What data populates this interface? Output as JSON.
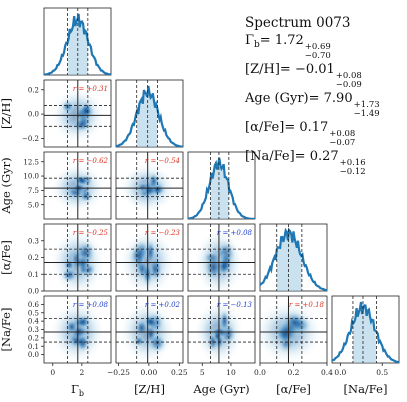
{
  "summary": {
    "title": "Spectrum 0073",
    "params": [
      {
        "label_main": "Γ",
        "label_sub": "b",
        "label_rest": "",
        "eq": "= ",
        "value": "1.72",
        "plus": "+0.69",
        "minus": "−0.70"
      },
      {
        "label_main": "[Z/H]",
        "label_sub": "",
        "label_rest": "",
        "eq": "= ",
        "value": "−0.01",
        "plus": "+0.08",
        "minus": "−0.09"
      },
      {
        "label_main": "Age (Gyr)",
        "label_sub": "",
        "label_rest": "",
        "eq": "= ",
        "value": "7.90",
        "plus": "+1.73",
        "minus": "−1.49"
      },
      {
        "label_main": "[α/Fe]",
        "label_sub": "",
        "label_rest": "",
        "eq": "= ",
        "value": "0.17",
        "plus": "+0.08",
        "minus": "−0.07"
      },
      {
        "label_main": "[Na/Fe]",
        "label_sub": "",
        "label_rest": "",
        "eq": "= ",
        "value": "0.27",
        "plus": "+0.16",
        "minus": "−0.12"
      }
    ]
  },
  "chart_data": {
    "type": "corner",
    "colors": {
      "density": "#1f77b4",
      "posterior_line": "#1f77b4",
      "r_positive": "#e0301e",
      "r_negative": "#2040d0"
    },
    "params": [
      {
        "key": "gamma_b",
        "axis_label": "Γ",
        "axis_sub": "b",
        "range": [
          -0.6,
          4.0
        ],
        "ticks": [
          0,
          2
        ],
        "median": 1.72,
        "lo": 1.02,
        "hi": 2.41
      },
      {
        "key": "zh",
        "axis_label": "[Z/H]",
        "axis_sub": "",
        "range": [
          -0.27,
          0.28
        ],
        "ticks": [
          -0.25,
          0.0,
          0.25
        ],
        "tick_labels": [
          "−0.25",
          "0.00",
          "0.25"
        ],
        "median": -0.01,
        "lo": -0.1,
        "hi": 0.07
      },
      {
        "key": "age",
        "axis_label": "Age (Gyr)",
        "axis_sub": "",
        "range": [
          2.5,
          14.2
        ],
        "ticks": [
          5,
          10
        ],
        "left_ticks": [
          5.0,
          7.5,
          10.0,
          12.5
        ],
        "left_tick_labels": [
          "5.0",
          "7.5",
          "10.0",
          "12.5"
        ],
        "median": 7.9,
        "lo": 6.41,
        "hi": 9.63
      },
      {
        "key": "afe",
        "axis_label": "[α/Fe]",
        "axis_sub": "",
        "range": [
          0.0,
          0.4
        ],
        "ticks": [
          0.0,
          0.2,
          0.4
        ],
        "left_ticks": [
          0.0,
          0.1,
          0.2,
          0.3
        ],
        "left_tick_labels": [
          "0.0",
          "0.1",
          "0.2",
          "0.3"
        ],
        "median": 0.17,
        "lo": 0.1,
        "hi": 0.25
      },
      {
        "key": "nafe",
        "axis_label": "[Na/Fe]",
        "axis_sub": "",
        "range": [
          -0.1,
          0.7
        ],
        "ticks": [
          0.0,
          0.5
        ],
        "left_ticks": [
          0.0,
          0.1,
          0.2,
          0.3,
          0.4,
          0.5,
          0.6
        ],
        "left_tick_labels": [
          "0.0",
          "0.1",
          "0.2",
          "0.3",
          "0.4",
          "0.5",
          "0.6"
        ],
        "median": 0.27,
        "lo": 0.15,
        "hi": 0.43
      }
    ],
    "zh_left": {
      "ticks": [
        -0.2,
        0.0,
        0.2
      ],
      "tick_labels": [
        "−0.2",
        "0.0",
        "0.2"
      ]
    },
    "bottom_tick_labels": [
      [
        "0",
        "2"
      ],
      [
        "−0.25",
        "0.00",
        "0.25"
      ],
      [
        "5",
        "10"
      ],
      [
        "0.0",
        "0.2",
        "0.4"
      ],
      [
        "0.0",
        "0.5"
      ]
    ],
    "correlations": [
      {
        "row": 1,
        "col": 0,
        "r": "r = +0.31"
      },
      {
        "row": 2,
        "col": 0,
        "r": "r = −0.62"
      },
      {
        "row": 2,
        "col": 1,
        "r": "r = −0.54"
      },
      {
        "row": 3,
        "col": 0,
        "r": "r = −0.25"
      },
      {
        "row": 3,
        "col": 1,
        "r": "r = −0.23"
      },
      {
        "row": 3,
        "col": 2,
        "r": "r = +0.08"
      },
      {
        "row": 4,
        "col": 0,
        "r": "r = +0.08"
      },
      {
        "row": 4,
        "col": 1,
        "r": "r = +0.02"
      },
      {
        "row": 4,
        "col": 2,
        "r": "r = −0.13"
      },
      {
        "row": 4,
        "col": 3,
        "r": "r = +0.18"
      }
    ]
  }
}
